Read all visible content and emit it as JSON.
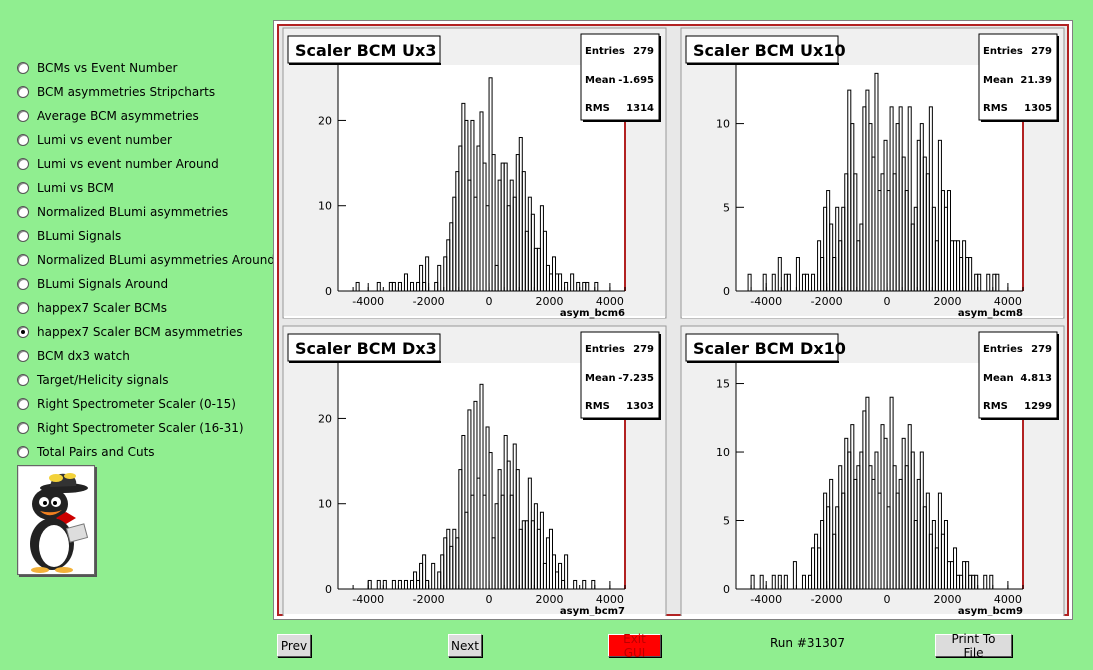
{
  "sidebar": {
    "selected_index": 11,
    "items": [
      {
        "label": "BCMs vs Event Number"
      },
      {
        "label": "BCM asymmetries Stripcharts"
      },
      {
        "label": "Average BCM asymmetries"
      },
      {
        "label": "Lumi vs event number"
      },
      {
        "label": "Lumi vs event number Around"
      },
      {
        "label": "Lumi vs BCM"
      },
      {
        "label": "Normalized BLumi asymmetries"
      },
      {
        "label": "BLumi Signals"
      },
      {
        "label": "Normalized BLumi asymmetries Around"
      },
      {
        "label": "BLumi Signals Around"
      },
      {
        "label": "happex7 Scaler BCMs"
      },
      {
        "label": "happex7 Scaler BCM asymmetries"
      },
      {
        "label": "BCM dx3 watch"
      },
      {
        "label": "Target/Helicity signals"
      },
      {
        "label": "Right Spectrometer Scaler (0-15)"
      },
      {
        "label": "Right Spectrometer Scaler (16-31)"
      },
      {
        "label": "Total Pairs and Cuts"
      }
    ]
  },
  "footer": {
    "prev_label": "Prev",
    "next_label": "Next",
    "exit_label": "Exit GUI",
    "run_label": "Run #31307",
    "print_label": "Print To File"
  },
  "chart_data": [
    {
      "type": "bar",
      "title": "Scaler BCM Ux3",
      "xlabel": "asym_bcm6",
      "stats": {
        "entries": "279",
        "mean": "-1.695",
        "rms": "1314"
      },
      "stats_labels": {
        "entries": "Entries",
        "mean": "Mean",
        "rms": "RMS"
      },
      "xlim": [
        -5000,
        4500
      ],
      "ylim": [
        0,
        26.5
      ],
      "xticks": [
        -4000,
        -2000,
        0,
        2000,
        4000
      ],
      "yticks": [
        0,
        10,
        20
      ],
      "bin_width": 100,
      "x": [
        -4400,
        -3700,
        -3300,
        -3200,
        -3000,
        -2800,
        -2600,
        -2400,
        -2300,
        -2200,
        -2100,
        -1800,
        -1700,
        -1500,
        -1400,
        -1300,
        -1200,
        -1100,
        -1000,
        -900,
        -800,
        -700,
        -600,
        -500,
        -400,
        -300,
        -200,
        -100,
        0,
        100,
        200,
        300,
        400,
        500,
        600,
        700,
        800,
        900,
        1000,
        1100,
        1200,
        1300,
        1400,
        1500,
        1600,
        1700,
        1800,
        1900,
        2000,
        2100,
        2200,
        2300,
        2500,
        2700,
        2900,
        3100,
        3200,
        3500
      ],
      "values": [
        1,
        1,
        1,
        1,
        1,
        2,
        1,
        1,
        3,
        1,
        4,
        1,
        3,
        4,
        6,
        8,
        11,
        14,
        17,
        22,
        20,
        13,
        20,
        11,
        17,
        21,
        15,
        10,
        25,
        16,
        3,
        13,
        15,
        15,
        10,
        13,
        11,
        16,
        18,
        14,
        7,
        11,
        9,
        5,
        5,
        10,
        7,
        3,
        2,
        4,
        2,
        2,
        1,
        2,
        1,
        1,
        1,
        1
      ]
    },
    {
      "type": "bar",
      "title": "Scaler BCM Ux10",
      "xlabel": "asym_bcm8",
      "stats": {
        "entries": "279",
        "mean": "21.39",
        "rms": "1305"
      },
      "stats_labels": {
        "entries": "Entries",
        "mean": "Mean",
        "rms": "RMS"
      },
      "xlim": [
        -5000,
        4500
      ],
      "ylim": [
        0,
        13.5
      ],
      "xticks": [
        -4000,
        -2000,
        0,
        2000,
        4000
      ],
      "yticks": [
        0,
        5,
        10
      ],
      "bin_width": 100,
      "x": [
        -4600,
        -4100,
        -3800,
        -3600,
        -3400,
        -3300,
        -3000,
        -2800,
        -2700,
        -2500,
        -2300,
        -2200,
        -2100,
        -2000,
        -1900,
        -1800,
        -1700,
        -1600,
        -1500,
        -1400,
        -1300,
        -1200,
        -1100,
        -1000,
        -900,
        -800,
        -700,
        -600,
        -500,
        -400,
        -300,
        -200,
        -100,
        0,
        100,
        200,
        300,
        400,
        500,
        600,
        700,
        800,
        900,
        1000,
        1100,
        1200,
        1300,
        1400,
        1500,
        1600,
        1700,
        1800,
        1900,
        2000,
        2100,
        2200,
        2300,
        2400,
        2500,
        2600,
        2700,
        2900,
        3000,
        3300,
        3500,
        3600
      ],
      "values": [
        1,
        1,
        1,
        2,
        1,
        1,
        2,
        1,
        1,
        1,
        3,
        2,
        5,
        6,
        4,
        2,
        5,
        3,
        5,
        7,
        12,
        10,
        7,
        3,
        4,
        11,
        12,
        10,
        8,
        13,
        6,
        7,
        9,
        6,
        11,
        7,
        10,
        11,
        8,
        6,
        11,
        4,
        5,
        9,
        10,
        8,
        7,
        11,
        5,
        3,
        9,
        6,
        5,
        6,
        3,
        3,
        3,
        2,
        3,
        2,
        2,
        1,
        1,
        1,
        1,
        1
      ]
    },
    {
      "type": "bar",
      "title": "Scaler BCM Dx3",
      "xlabel": "asym_bcm7",
      "stats": {
        "entries": "279",
        "mean": "-7.235",
        "rms": "1303"
      },
      "stats_labels": {
        "entries": "Entries",
        "mean": "Mean",
        "rms": "RMS"
      },
      "xlim": [
        -5000,
        4500
      ],
      "ylim": [
        0,
        26.5
      ],
      "xticks": [
        -4000,
        -2000,
        0,
        2000,
        4000
      ],
      "yticks": [
        0,
        10,
        20
      ],
      "bin_width": 100,
      "x": [
        -4000,
        -3700,
        -3500,
        -3200,
        -3000,
        -2800,
        -2600,
        -2500,
        -2400,
        -2300,
        -2200,
        -2100,
        -1900,
        -1700,
        -1600,
        -1500,
        -1400,
        -1300,
        -1200,
        -1100,
        -1000,
        -900,
        -800,
        -700,
        -600,
        -500,
        -400,
        -300,
        -200,
        -100,
        0,
        100,
        200,
        300,
        400,
        500,
        600,
        700,
        800,
        900,
        1000,
        1100,
        1200,
        1300,
        1400,
        1500,
        1600,
        1700,
        1800,
        1900,
        2000,
        2100,
        2200,
        2300,
        2400,
        2500,
        2800,
        3100,
        3400
      ],
      "values": [
        1,
        1,
        1,
        1,
        1,
        1,
        1,
        2,
        1,
        3,
        4,
        1,
        3,
        2,
        4,
        6,
        7,
        5,
        7,
        6,
        14,
        18,
        9,
        21,
        11,
        22,
        13,
        24,
        11,
        19,
        16,
        6,
        10,
        14,
        11,
        18,
        15,
        11,
        17,
        14,
        7,
        8,
        8,
        13,
        8,
        10,
        7,
        9,
        3,
        6,
        7,
        4,
        2,
        3,
        1,
        4,
        1,
        1,
        1
      ]
    },
    {
      "type": "bar",
      "title": "Scaler BCM Dx10",
      "xlabel": "asym_bcm9",
      "stats": {
        "entries": "279",
        "mean": "4.813",
        "rms": "1299"
      },
      "stats_labels": {
        "entries": "Entries",
        "mean": "Mean",
        "rms": "RMS"
      },
      "xlim": [
        -5000,
        4500
      ],
      "ylim": [
        0,
        16.5
      ],
      "xticks": [
        -4000,
        -2000,
        0,
        2000,
        4000
      ],
      "yticks": [
        0,
        5,
        10,
        15
      ],
      "bin_width": 100,
      "x": [
        -4500,
        -4200,
        -3800,
        -3600,
        -3400,
        -3100,
        -2800,
        -2600,
        -2500,
        -2400,
        -2300,
        -2200,
        -2100,
        -2000,
        -1900,
        -1800,
        -1700,
        -1600,
        -1500,
        -1400,
        -1300,
        -1200,
        -1100,
        -1000,
        -900,
        -800,
        -700,
        -600,
        -500,
        -400,
        -300,
        -200,
        -100,
        0,
        100,
        200,
        300,
        400,
        500,
        600,
        700,
        800,
        900,
        1000,
        1100,
        1200,
        1300,
        1400,
        1500,
        1600,
        1700,
        1800,
        1900,
        2000,
        2100,
        2200,
        2300,
        2400,
        2500,
        2600,
        2700,
        2800,
        2900,
        3200,
        3400
      ],
      "values": [
        1,
        1,
        1,
        1,
        1,
        2,
        1,
        1,
        3,
        4,
        3,
        5,
        7,
        6,
        8,
        4,
        6,
        9,
        7,
        11,
        10,
        12,
        8,
        9,
        10,
        13,
        14,
        9,
        8,
        10,
        7,
        12,
        11,
        6,
        14,
        9,
        7,
        8,
        11,
        9,
        12,
        10,
        5,
        8,
        10,
        6,
        7,
        4,
        5,
        3,
        7,
        4,
        5,
        2,
        2,
        3,
        1,
        1,
        2,
        2,
        1,
        1,
        1,
        1,
        1
      ]
    }
  ]
}
